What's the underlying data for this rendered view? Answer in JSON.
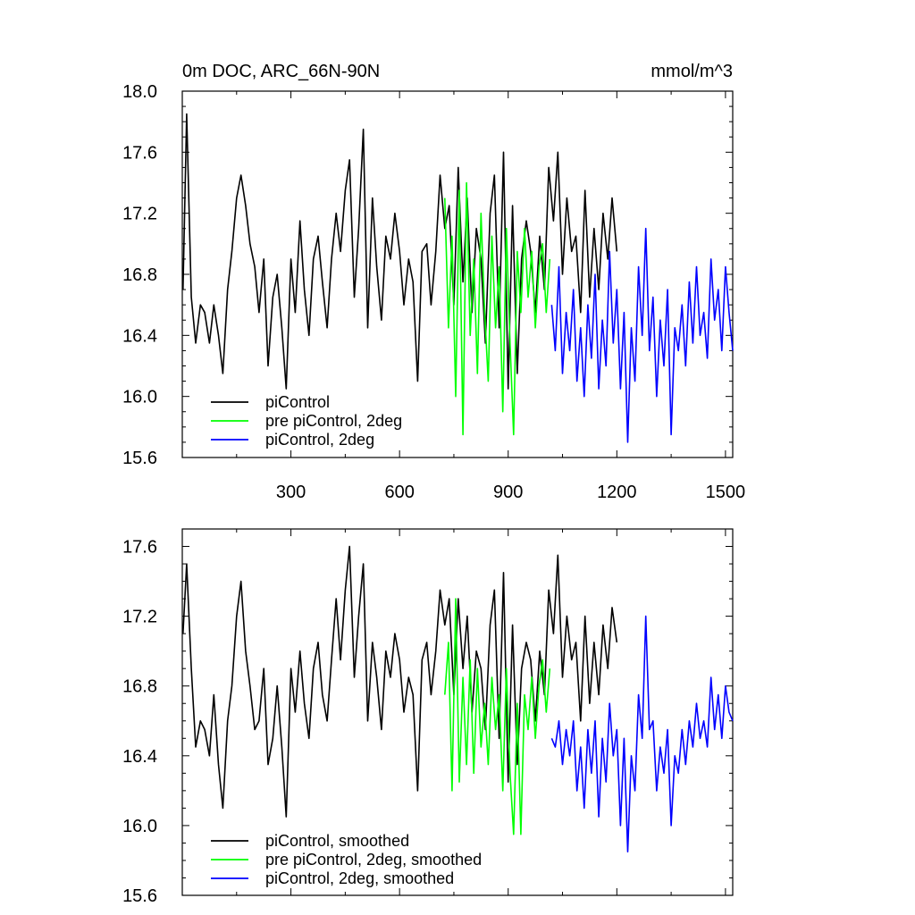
{
  "title_left": "0m DOC, ARC_66N-90N",
  "title_right": "mmol/m^3",
  "chart_data": [
    {
      "type": "line",
      "xlim": [
        0,
        1520
      ],
      "ylim": [
        15.6,
        18.0
      ],
      "yticks": [
        15.6,
        16.0,
        16.4,
        16.8,
        17.2,
        17.6,
        18.0
      ],
      "ytick_labels": [
        "15.6",
        "16.0",
        "16.4",
        "16.8",
        "17.2",
        "17.6",
        "18.0"
      ],
      "xticks": [
        300,
        600,
        900,
        1200,
        1500
      ],
      "xtick_labels": [
        "300",
        "600",
        "900",
        "1200",
        "1500"
      ],
      "legend_position": "bottom-left",
      "series": [
        {
          "name": "piControl",
          "color": "#000000",
          "x": [
            2,
            12,
            25,
            37,
            50,
            62,
            75,
            87,
            100,
            112,
            125,
            137,
            150,
            162,
            175,
            187,
            200,
            212,
            225,
            237,
            250,
            262,
            275,
            287,
            300,
            312,
            325,
            337,
            350,
            362,
            375,
            387,
            400,
            412,
            425,
            437,
            450,
            462,
            475,
            487,
            500,
            512,
            525,
            537,
            550,
            562,
            575,
            587,
            600,
            612,
            625,
            637,
            650,
            662,
            675,
            687,
            700,
            712,
            725,
            737,
            750,
            762,
            775,
            787,
            800,
            812,
            825,
            837,
            850,
            862,
            875,
            887,
            900,
            912,
            925,
            937,
            950,
            962,
            975,
            987,
            1000,
            1012,
            1025,
            1037,
            1050,
            1062,
            1075,
            1087,
            1100,
            1112,
            1125,
            1137,
            1150,
            1162,
            1175,
            1187,
            1200
          ],
          "values": [
            16.7,
            17.85,
            16.65,
            16.35,
            16.6,
            16.55,
            16.35,
            16.6,
            16.4,
            16.15,
            16.7,
            16.95,
            17.3,
            17.45,
            17.25,
            17.0,
            16.85,
            16.55,
            16.9,
            16.2,
            16.65,
            16.8,
            16.45,
            16.05,
            16.9,
            16.55,
            17.15,
            16.7,
            16.4,
            16.9,
            17.05,
            16.75,
            16.45,
            16.9,
            17.2,
            16.95,
            17.35,
            17.55,
            16.65,
            17.1,
            17.75,
            16.45,
            17.3,
            16.85,
            16.5,
            17.05,
            16.9,
            17.2,
            16.95,
            16.6,
            16.9,
            16.75,
            16.1,
            16.95,
            17.0,
            16.6,
            16.95,
            17.45,
            17.1,
            17.25,
            16.6,
            17.5,
            16.75,
            17.3,
            16.55,
            17.1,
            16.9,
            16.35,
            17.2,
            17.45,
            16.45,
            17.6,
            16.05,
            17.25,
            16.15,
            16.9,
            17.15,
            16.95,
            16.55,
            17.05,
            16.7,
            17.5,
            17.15,
            17.6,
            16.8,
            17.3,
            16.95,
            17.05,
            16.55,
            17.35,
            16.65,
            17.1,
            16.7,
            17.2,
            16.9,
            17.3,
            16.95
          ]
        },
        {
          "name": "pre piControl, 2deg",
          "color": "#00ff00",
          "x": [
            725,
            735,
            745,
            755,
            765,
            775,
            785,
            795,
            805,
            815,
            825,
            835,
            845,
            855,
            865,
            875,
            885,
            895,
            905,
            915,
            925,
            935,
            945,
            955,
            965,
            975,
            985,
            995,
            1005,
            1015
          ],
          "values": [
            17.3,
            16.45,
            17.05,
            16.0,
            17.35,
            15.75,
            17.4,
            16.4,
            16.9,
            16.15,
            17.2,
            16.55,
            16.1,
            17.05,
            16.45,
            16.85,
            15.9,
            17.1,
            16.35,
            15.75,
            16.95,
            16.55,
            17.1,
            16.65,
            16.95,
            16.45,
            16.85,
            17.0,
            16.55,
            16.9
          ]
        },
        {
          "name": "piControl, 2deg",
          "color": "#0000ff",
          "x": [
            1020,
            1030,
            1040,
            1050,
            1060,
            1070,
            1080,
            1090,
            1100,
            1110,
            1120,
            1130,
            1140,
            1150,
            1160,
            1170,
            1180,
            1190,
            1200,
            1210,
            1220,
            1230,
            1240,
            1250,
            1260,
            1270,
            1280,
            1290,
            1300,
            1310,
            1320,
            1330,
            1340,
            1350,
            1360,
            1370,
            1380,
            1390,
            1400,
            1410,
            1420,
            1430,
            1440,
            1450,
            1460,
            1470,
            1480,
            1490,
            1500,
            1510,
            1520
          ],
          "values": [
            16.6,
            16.3,
            16.85,
            16.15,
            16.55,
            16.3,
            16.7,
            16.1,
            16.45,
            16.0,
            16.6,
            16.25,
            16.8,
            16.05,
            16.5,
            16.2,
            16.95,
            16.35,
            16.7,
            16.05,
            16.55,
            15.7,
            16.45,
            16.1,
            16.85,
            16.4,
            17.1,
            16.3,
            16.65,
            16.0,
            16.5,
            16.2,
            16.7,
            15.75,
            16.45,
            16.3,
            16.6,
            16.2,
            16.75,
            16.35,
            16.85,
            16.4,
            16.55,
            16.25,
            16.9,
            16.5,
            16.7,
            16.3,
            16.85,
            16.55,
            16.3
          ]
        }
      ]
    },
    {
      "type": "line",
      "xlim": [
        0,
        1520
      ],
      "ylim": [
        15.6,
        17.7
      ],
      "yticks": [
        15.6,
        16.0,
        16.4,
        16.8,
        17.2,
        17.6
      ],
      "ytick_labels": [
        "15.6",
        "16.0",
        "16.4",
        "16.8",
        "17.2",
        "17.6"
      ],
      "xticks": [
        300,
        600,
        900,
        1200,
        1500
      ],
      "xtick_labels": [],
      "legend_position": "bottom-left",
      "series": [
        {
          "name": "piControl, smoothed",
          "color": "#000000",
          "x": [
            2,
            12,
            25,
            37,
            50,
            62,
            75,
            87,
            100,
            112,
            125,
            137,
            150,
            162,
            175,
            187,
            200,
            212,
            225,
            237,
            250,
            262,
            275,
            287,
            300,
            312,
            325,
            337,
            350,
            362,
            375,
            387,
            400,
            412,
            425,
            437,
            450,
            462,
            475,
            487,
            500,
            512,
            525,
            537,
            550,
            562,
            575,
            587,
            600,
            612,
            625,
            637,
            650,
            662,
            675,
            687,
            700,
            712,
            725,
            737,
            750,
            762,
            775,
            787,
            800,
            812,
            825,
            837,
            850,
            862,
            875,
            887,
            900,
            912,
            925,
            937,
            950,
            962,
            975,
            987,
            1000,
            1012,
            1025,
            1037,
            1050,
            1062,
            1075,
            1087,
            1100,
            1112,
            1125,
            1137,
            1150,
            1162,
            1175,
            1187,
            1200
          ],
          "values": [
            17.1,
            17.5,
            16.9,
            16.45,
            16.6,
            16.55,
            16.4,
            16.75,
            16.35,
            16.1,
            16.6,
            16.8,
            17.2,
            17.4,
            17.0,
            16.8,
            16.55,
            16.6,
            16.9,
            16.35,
            16.5,
            16.8,
            16.45,
            16.05,
            16.9,
            16.65,
            17.0,
            16.7,
            16.5,
            16.9,
            17.05,
            16.75,
            16.6,
            16.95,
            17.3,
            16.95,
            17.35,
            17.6,
            16.85,
            17.2,
            17.5,
            16.6,
            17.05,
            16.85,
            16.55,
            17.0,
            16.85,
            17.1,
            16.95,
            16.65,
            16.85,
            16.75,
            16.2,
            16.95,
            17.05,
            16.75,
            17.0,
            17.35,
            17.15,
            17.3,
            16.75,
            17.3,
            16.9,
            17.2,
            16.65,
            17.0,
            16.9,
            16.55,
            17.15,
            17.35,
            16.5,
            17.45,
            16.25,
            17.15,
            16.35,
            16.9,
            17.05,
            16.95,
            16.6,
            17.0,
            16.75,
            17.35,
            17.1,
            17.55,
            16.85,
            17.2,
            16.95,
            17.05,
            16.6,
            17.2,
            16.7,
            17.05,
            16.75,
            17.15,
            16.9,
            17.25,
            17.05
          ]
        },
        {
          "name": "pre piControl, 2deg, smoothed",
          "color": "#00ff00",
          "x": [
            725,
            735,
            745,
            755,
            765,
            775,
            785,
            795,
            805,
            815,
            825,
            835,
            845,
            855,
            865,
            875,
            885,
            895,
            905,
            915,
            925,
            935,
            945,
            955,
            965,
            975,
            985,
            995,
            1005,
            1015
          ],
          "values": [
            16.75,
            17.05,
            16.2,
            17.3,
            16.25,
            16.85,
            16.35,
            16.95,
            16.3,
            16.9,
            16.45,
            16.7,
            16.35,
            16.85,
            16.55,
            16.75,
            16.2,
            16.9,
            16.3,
            15.95,
            16.7,
            15.95,
            16.75,
            16.55,
            16.85,
            16.5,
            16.8,
            16.95,
            16.65,
            16.9
          ]
        },
        {
          "name": "piControl, 2deg, smoothed",
          "color": "#0000ff",
          "x": [
            1020,
            1030,
            1040,
            1050,
            1060,
            1070,
            1080,
            1090,
            1100,
            1110,
            1120,
            1130,
            1140,
            1150,
            1160,
            1170,
            1180,
            1190,
            1200,
            1210,
            1220,
            1230,
            1240,
            1250,
            1260,
            1270,
            1280,
            1290,
            1300,
            1310,
            1320,
            1330,
            1340,
            1350,
            1360,
            1370,
            1380,
            1390,
            1400,
            1410,
            1420,
            1430,
            1440,
            1450,
            1460,
            1470,
            1480,
            1490,
            1500,
            1510,
            1520
          ],
          "values": [
            16.5,
            16.45,
            16.6,
            16.35,
            16.55,
            16.4,
            16.6,
            16.2,
            16.45,
            16.1,
            16.55,
            16.3,
            16.6,
            16.05,
            16.5,
            16.25,
            16.7,
            16.4,
            16.55,
            16.0,
            16.5,
            15.85,
            16.4,
            16.2,
            16.75,
            16.5,
            17.2,
            16.55,
            16.6,
            16.2,
            16.45,
            16.3,
            16.55,
            16.0,
            16.4,
            16.3,
            16.55,
            16.35,
            16.6,
            16.45,
            16.7,
            16.5,
            16.6,
            16.45,
            16.85,
            16.55,
            16.75,
            16.5,
            16.8,
            16.65,
            16.6
          ]
        }
      ]
    }
  ]
}
